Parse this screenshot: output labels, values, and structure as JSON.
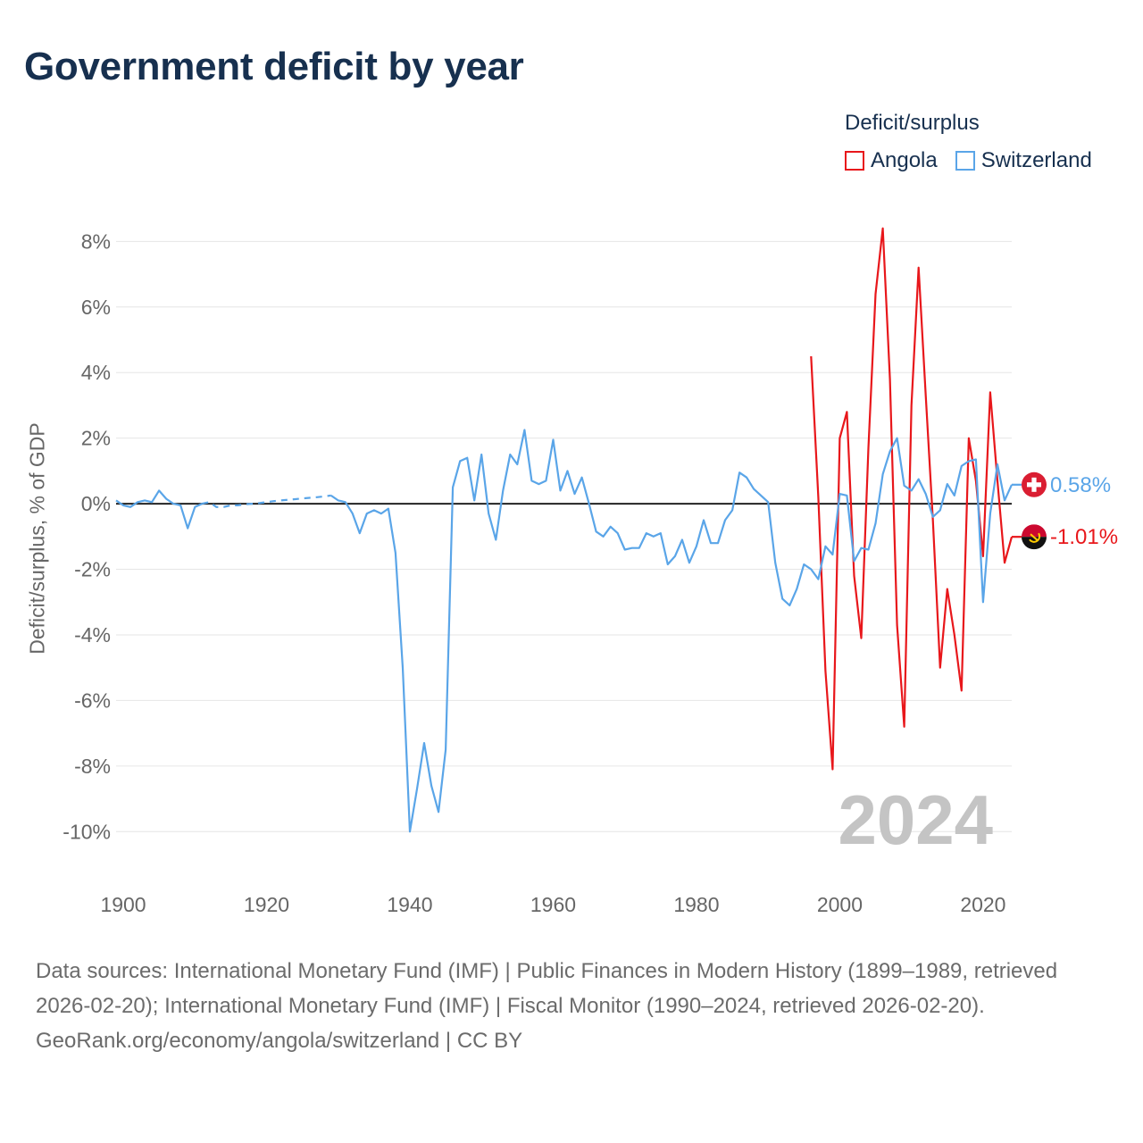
{
  "title": "Government deficit by year",
  "legend": {
    "title": "Deficit/surplus",
    "items": [
      {
        "label": "Angola",
        "color": "#e8171b"
      },
      {
        "label": "Switzerland",
        "color": "#5aa5e8"
      }
    ]
  },
  "footer": {
    "sources": "Data sources: International Monetary Fund (IMF) | Public Finances in Modern History (1899–1989, retrieved 2026-02-20); International Monetary Fund (IMF) | Fiscal Monitor (1990–2024, retrieved 2026-02-20).",
    "credit": "GeoRank.org/economy/angola/switzerland | CC BY"
  },
  "chart_data": {
    "type": "line",
    "title": "Government deficit by year",
    "xlabel": "",
    "ylabel": "Deficit/surplus, % of GDP",
    "xlim": [
      1899,
      2024
    ],
    "ylim": [
      -11,
      8.5
    ],
    "xticks": [
      1900,
      1920,
      1940,
      1960,
      1980,
      2000,
      2020
    ],
    "yticks": [
      -10,
      -8,
      -6,
      -4,
      -2,
      0,
      2,
      4,
      6,
      8
    ],
    "ytick_labels": [
      "-10%",
      "-8%",
      "-6%",
      "-4%",
      "-2%",
      "0%",
      "2%",
      "4%",
      "6%",
      "8%"
    ],
    "year_label": "2024",
    "grid": true,
    "legend_position": "top-right",
    "series": [
      {
        "name": "Angola",
        "color": "#e8171b",
        "end_label": "-1.01%",
        "end_icon": "angola-flag-icon",
        "x": [
          1996,
          1997,
          1998,
          1999,
          2000,
          2001,
          2002,
          2003,
          2004,
          2005,
          2006,
          2007,
          2008,
          2009,
          2010,
          2011,
          2012,
          2013,
          2014,
          2015,
          2016,
          2017,
          2018,
          2019,
          2020,
          2021,
          2022,
          2023,
          2024
        ],
        "values": [
          4.5,
          0.2,
          -5.1,
          -8.1,
          2.0,
          2.8,
          -2.2,
          -4.1,
          1.7,
          6.4,
          8.4,
          3.8,
          -3.7,
          -6.8,
          3.0,
          7.2,
          3.3,
          -0.5,
          -5.0,
          -2.6,
          -4.0,
          -5.7,
          2.0,
          0.7,
          -1.6,
          3.4,
          0.7,
          -1.8,
          -1.01
        ],
        "segments": [
          [
            1996,
            2024
          ]
        ]
      },
      {
        "name": "Switzerland",
        "color": "#5aa5e8",
        "end_label": "0.58%",
        "end_icon": "switzerland-flag-icon",
        "x": [
          1899,
          1900,
          1901,
          1902,
          1903,
          1904,
          1905,
          1906,
          1907,
          1908,
          1909,
          1910,
          1911,
          1912,
          1913,
          1914,
          1915,
          1916,
          1917,
          1918,
          1919,
          1920,
          1921,
          1922,
          1923,
          1924,
          1925,
          1926,
          1927,
          1928,
          1929,
          1930,
          1931,
          1932,
          1933,
          1934,
          1935,
          1936,
          1937,
          1938,
          1939,
          1940,
          1941,
          1942,
          1943,
          1944,
          1945,
          1946,
          1947,
          1948,
          1949,
          1950,
          1951,
          1952,
          1953,
          1954,
          1955,
          1956,
          1957,
          1958,
          1959,
          1960,
          1961,
          1962,
          1963,
          1964,
          1965,
          1966,
          1967,
          1968,
          1969,
          1970,
          1971,
          1972,
          1973,
          1974,
          1975,
          1976,
          1977,
          1978,
          1979,
          1980,
          1981,
          1982,
          1983,
          1984,
          1985,
          1986,
          1987,
          1988,
          1989,
          1990,
          1991,
          1992,
          1993,
          1994,
          1995,
          1996,
          1997,
          1998,
          1999,
          2000,
          2001,
          2002,
          2003,
          2004,
          2005,
          2006,
          2007,
          2008,
          2009,
          2010,
          2011,
          2012,
          2013,
          2014,
          2015,
          2016,
          2017,
          2018,
          2019,
          2020,
          2021,
          2022,
          2023,
          2024
        ],
        "values": [
          0.1,
          -0.05,
          -0.1,
          0.05,
          0.1,
          0.05,
          0.4,
          0.15,
          0.0,
          -0.05,
          -0.75,
          -0.1,
          0.0,
          0.05,
          -0.1,
          -0.1,
          -0.05,
          -0.05,
          -0.02,
          0.0,
          0.02,
          0.05,
          0.08,
          0.1,
          0.12,
          0.14,
          0.16,
          0.18,
          0.2,
          0.22,
          0.25,
          0.1,
          0.05,
          -0.3,
          -0.9,
          -0.3,
          -0.2,
          -0.3,
          -0.15,
          -1.5,
          -5.0,
          -10.0,
          -8.7,
          -7.3,
          -8.6,
          -9.4,
          -7.5,
          0.5,
          1.3,
          1.4,
          0.1,
          1.5,
          -0.3,
          -1.1,
          0.4,
          1.5,
          1.2,
          2.25,
          0.7,
          0.6,
          0.7,
          1.95,
          0.4,
          1.0,
          0.3,
          0.8,
          0.0,
          -0.85,
          -1.0,
          -0.7,
          -0.9,
          -1.4,
          -1.35,
          -1.35,
          -0.9,
          -1.0,
          -0.9,
          -1.85,
          -1.6,
          -1.1,
          -1.8,
          -1.3,
          -0.5,
          -1.2,
          -1.2,
          -0.5,
          -0.2,
          0.95,
          0.8,
          0.45,
          0.25,
          0.05,
          -1.8,
          -2.9,
          -3.1,
          -2.6,
          -1.85,
          -2.0,
          -2.3,
          -1.3,
          -1.55,
          0.3,
          0.25,
          -1.75,
          -1.35,
          -1.4,
          -0.6,
          0.9,
          1.6,
          2.0,
          0.55,
          0.4,
          0.75,
          0.3,
          -0.4,
          -0.2,
          0.6,
          0.25,
          1.15,
          1.3,
          1.35,
          -3.0,
          -0.3,
          1.2,
          0.1,
          0.58
        ],
        "segments": [
          [
            1899,
            1911
          ],
          [
            1929,
            2024
          ]
        ],
        "dashed_segments": [
          [
            1911,
            1929
          ]
        ]
      }
    ]
  }
}
